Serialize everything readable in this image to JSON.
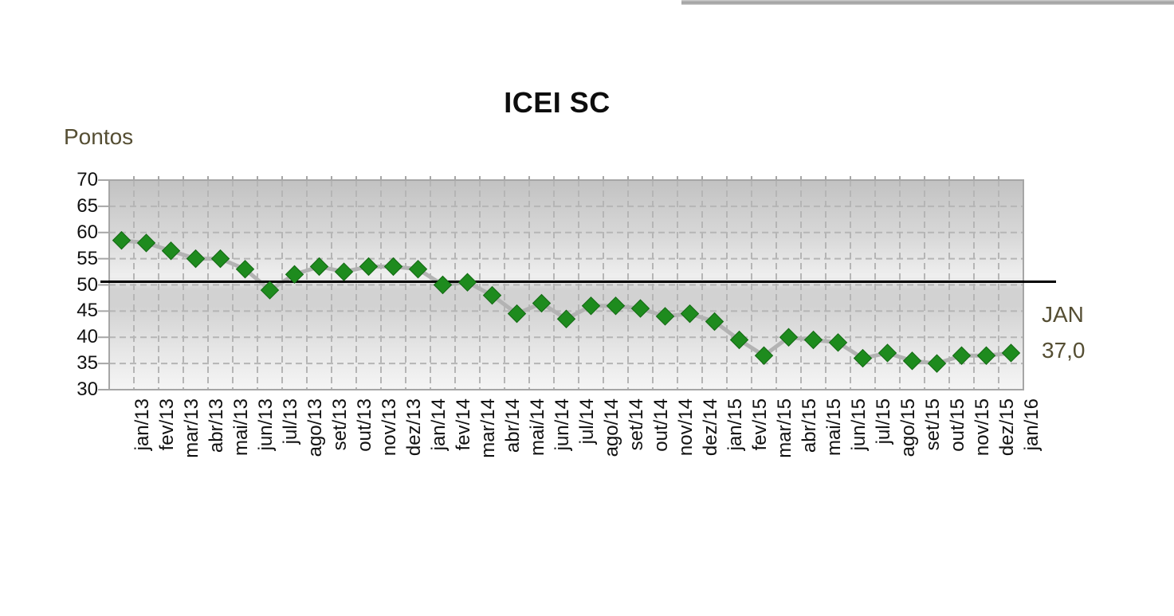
{
  "window": {
    "edge_bar": "gray-partial-top-bar"
  },
  "chart": {
    "title": "ICEI SC",
    "unit_label": "Pontos",
    "annotation": {
      "month": "JAN",
      "value": "37,0"
    }
  },
  "chart_data": {
    "type": "line",
    "title": "ICEI SC",
    "ylabel": "Pontos",
    "xlabel": "",
    "categories": [
      "jan/13",
      "fev/13",
      "mar/13",
      "abr/13",
      "mai/13",
      "jun/13",
      "jul/13",
      "ago/13",
      "set/13",
      "out/13",
      "nov/13",
      "dez/13",
      "jan/14",
      "fev/14",
      "mar/14",
      "abr/14",
      "mai/14",
      "jun/14",
      "jul/14",
      "ago/14",
      "set/14",
      "out/14",
      "nov/14",
      "dez/14",
      "jan/15",
      "fev/15",
      "mar/15",
      "abr/15",
      "mai/15",
      "jun/15",
      "jul/15",
      "ago/15",
      "set/15",
      "out/15",
      "nov/15",
      "dez/15",
      "jan/16"
    ],
    "series": [
      {
        "name": "ICEI SC",
        "values": [
          58.5,
          58.0,
          56.5,
          55.0,
          55.0,
          53.0,
          49.0,
          52.0,
          53.5,
          52.5,
          53.5,
          53.5,
          53.0,
          50.0,
          50.5,
          48.0,
          44.5,
          46.5,
          43.5,
          46.0,
          46.0,
          45.5,
          44.0,
          44.5,
          43.0,
          39.5,
          36.5,
          40.0,
          39.5,
          39.0,
          36.0,
          37.0,
          35.5,
          35.0,
          36.5,
          36.5,
          37.0
        ]
      }
    ],
    "ylim": [
      30,
      70
    ],
    "yticks": [
      30,
      35,
      40,
      45,
      50,
      55,
      60,
      65,
      70
    ],
    "reference_line": {
      "value": 50,
      "color": "#000000"
    },
    "grid": "dashed-horizontal-and-vertical",
    "legend": "none",
    "marker": "diamond",
    "last_point_label": "JAN 37,0",
    "colors": {
      "marker_fill": "#1e8b1e",
      "marker_edge": "#136813",
      "line": "#b3b3b3",
      "grid": "#b5b5b5",
      "frame": "#a6a6a6",
      "text_accent": "#554e33",
      "tick_text": "#111111",
      "plot_gradient_top": "#c2c2c2",
      "plot_gradient_mid": "#efefef",
      "plot_gradient_band": "#d2d2d2",
      "plot_gradient_bottom": "#f5f5f5"
    }
  }
}
